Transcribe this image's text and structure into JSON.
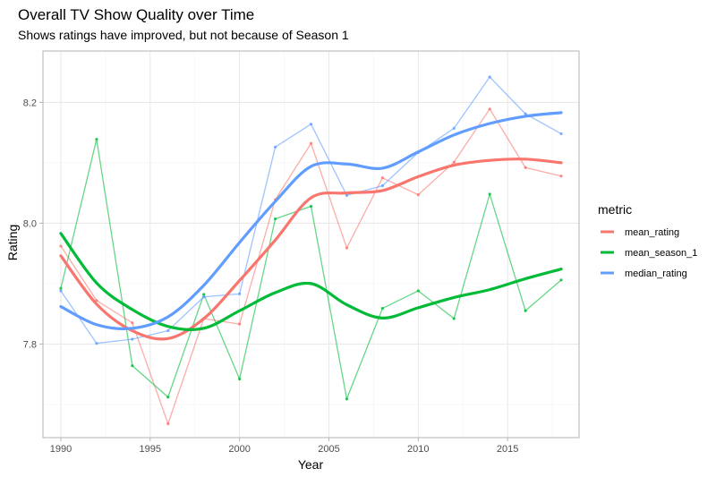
{
  "chart_data": {
    "type": "line",
    "title": "Overall TV Show Quality over Time",
    "subtitle": "Shows ratings have improved, but not because of Season 1",
    "xlabel": "Year",
    "ylabel": "Rating",
    "xlim": [
      1989,
      2019
    ],
    "ylim": [
      7.645,
      8.285
    ],
    "x_ticks": [
      1990,
      1995,
      2000,
      2005,
      2010,
      2015
    ],
    "x_tick_labels": [
      "1990",
      "1995",
      "2000",
      "2005",
      "2010",
      "2015"
    ],
    "y_ticks": [
      7.8,
      8.0,
      8.2
    ],
    "y_tick_labels": [
      "7.8",
      "8.0",
      "8.2"
    ],
    "legend_title": "metric",
    "legend_position": "right",
    "x": [
      1990,
      1992,
      1994,
      1996,
      1998,
      2000,
      2002,
      2004,
      2006,
      2008,
      2010,
      2012,
      2014,
      2016,
      2018
    ],
    "series": [
      {
        "name": "mean_rating",
        "color": "#f8766d",
        "values": [
          7.962,
          7.872,
          7.835,
          7.668,
          7.842,
          7.833,
          8.039,
          8.132,
          7.959,
          8.075,
          8.047,
          8.101,
          8.189,
          8.092,
          8.078
        ],
        "smooth_x": [
          1990,
          1992,
          1994,
          1996,
          1998,
          2000,
          2002,
          2004,
          2006,
          2008,
          2010,
          2012,
          2014,
          2016,
          2018
        ],
        "smooth_values": [
          7.946,
          7.866,
          7.822,
          7.809,
          7.842,
          7.905,
          7.972,
          8.042,
          8.05,
          8.054,
          8.077,
          8.096,
          8.104,
          8.106,
          8.1
        ]
      },
      {
        "name": "mean_season_1",
        "color": "#00ba38",
        "values": [
          7.892,
          8.139,
          7.764,
          7.712,
          7.882,
          7.742,
          8.007,
          8.028,
          7.709,
          7.859,
          7.888,
          7.842,
          8.048,
          7.855,
          7.906
        ],
        "smooth_x": [
          1990,
          1992,
          1994,
          1996,
          1998,
          2000,
          2002,
          2004,
          2006,
          2008,
          2010,
          2012,
          2014,
          2016,
          2018
        ],
        "smooth_values": [
          7.983,
          7.901,
          7.857,
          7.829,
          7.826,
          7.855,
          7.885,
          7.9,
          7.865,
          7.843,
          7.86,
          7.877,
          7.89,
          7.908,
          7.924
        ]
      },
      {
        "name": "median_rating",
        "color": "#619cff",
        "values": [
          7.888,
          7.801,
          7.808,
          7.822,
          7.878,
          7.883,
          8.126,
          8.164,
          8.046,
          8.062,
          8.117,
          8.157,
          8.242,
          8.181,
          8.148
        ],
        "smooth_x": [
          1990,
          1992,
          1994,
          1996,
          1998,
          2000,
          2002,
          2004,
          2006,
          2008,
          2010,
          2012,
          2014,
          2016,
          2018
        ],
        "smooth_values": [
          7.862,
          7.832,
          7.826,
          7.845,
          7.897,
          7.968,
          8.036,
          8.094,
          8.098,
          8.091,
          8.118,
          8.146,
          8.165,
          8.177,
          8.183
        ]
      }
    ]
  }
}
